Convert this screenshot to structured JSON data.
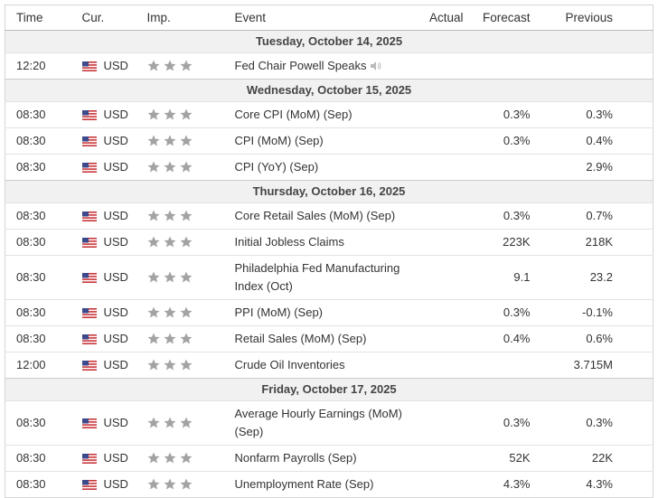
{
  "table": {
    "columns": [
      "Time",
      "Cur.",
      "Imp.",
      "Event",
      "Actual",
      "Forecast",
      "Previous"
    ],
    "groups": [
      {
        "date": "Tuesday, October 14, 2025",
        "rows": [
          {
            "time": "12:20",
            "currency": "USD",
            "event": "Fed Chair Powell Speaks",
            "speech": true
          }
        ]
      },
      {
        "date": "Wednesday, October 15, 2025",
        "rows": [
          {
            "time": "08:30",
            "currency": "USD",
            "event": "Core CPI (MoM) (Sep)",
            "forecast": "0.3%",
            "previous": "0.3%"
          },
          {
            "time": "08:30",
            "currency": "USD",
            "event": "CPI (MoM) (Sep)",
            "forecast": "0.3%",
            "previous": "0.4%"
          },
          {
            "time": "08:30",
            "currency": "USD",
            "event": "CPI (YoY) (Sep)",
            "previous": "2.9%"
          }
        ]
      },
      {
        "date": "Thursday, October 16, 2025",
        "rows": [
          {
            "time": "08:30",
            "currency": "USD",
            "event": "Core Retail Sales (MoM) (Sep)",
            "forecast": "0.3%",
            "previous": "0.7%"
          },
          {
            "time": "08:30",
            "currency": "USD",
            "event": "Initial Jobless Claims",
            "forecast": "223K",
            "previous": "218K"
          },
          {
            "time": "08:30",
            "currency": "USD",
            "event": "Philadelphia Fed Manufacturing Index (Oct)",
            "forecast": "9.1",
            "previous": "23.2"
          },
          {
            "time": "08:30",
            "currency": "USD",
            "event": "PPI (MoM) (Sep)",
            "forecast": "0.3%",
            "previous": "-0.1%"
          },
          {
            "time": "08:30",
            "currency": "USD",
            "event": "Retail Sales (MoM) (Sep)",
            "forecast": "0.4%",
            "previous": "0.6%"
          },
          {
            "time": "12:00",
            "currency": "USD",
            "event": "Crude Oil Inventories",
            "previous": "3.715M"
          }
        ]
      },
      {
        "date": "Friday, October 17, 2025",
        "rows": [
          {
            "time": "08:30",
            "currency": "USD",
            "event": "Average Hourly Earnings (MoM) (Sep)",
            "forecast": "0.3%",
            "previous": "0.3%"
          },
          {
            "time": "08:30",
            "currency": "USD",
            "event": "Nonfarm Payrolls (Sep)",
            "forecast": "52K",
            "previous": "22K"
          },
          {
            "time": "08:30",
            "currency": "USD",
            "event": "Unemployment Rate (Sep)",
            "forecast": "4.3%",
            "previous": "4.3%"
          }
        ]
      }
    ]
  }
}
